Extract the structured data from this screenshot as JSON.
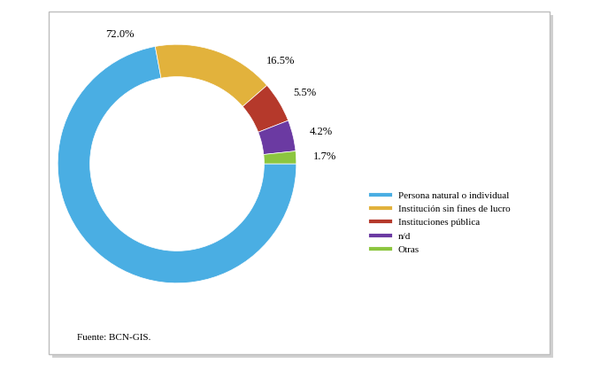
{
  "chart_data": {
    "type": "pie",
    "categories": [
      "Persona natural o individual",
      "Institución sin fines de lucro",
      "Instituciones pública",
      "n/d",
      "Otras"
    ],
    "values": [
      72.0,
      16.5,
      5.5,
      4.2,
      1.7
    ],
    "value_labels": [
      "72.0%",
      "16.5%",
      "5.5%",
      "4.2%",
      "1.7%"
    ],
    "colors": [
      "#4aaee3",
      "#e2b23c",
      "#b5392b",
      "#6b3aa2",
      "#8cc63f"
    ],
    "data_labels": true,
    "legend": "center right",
    "annotations": [
      "Fuente: BCN-GIS."
    ]
  }
}
